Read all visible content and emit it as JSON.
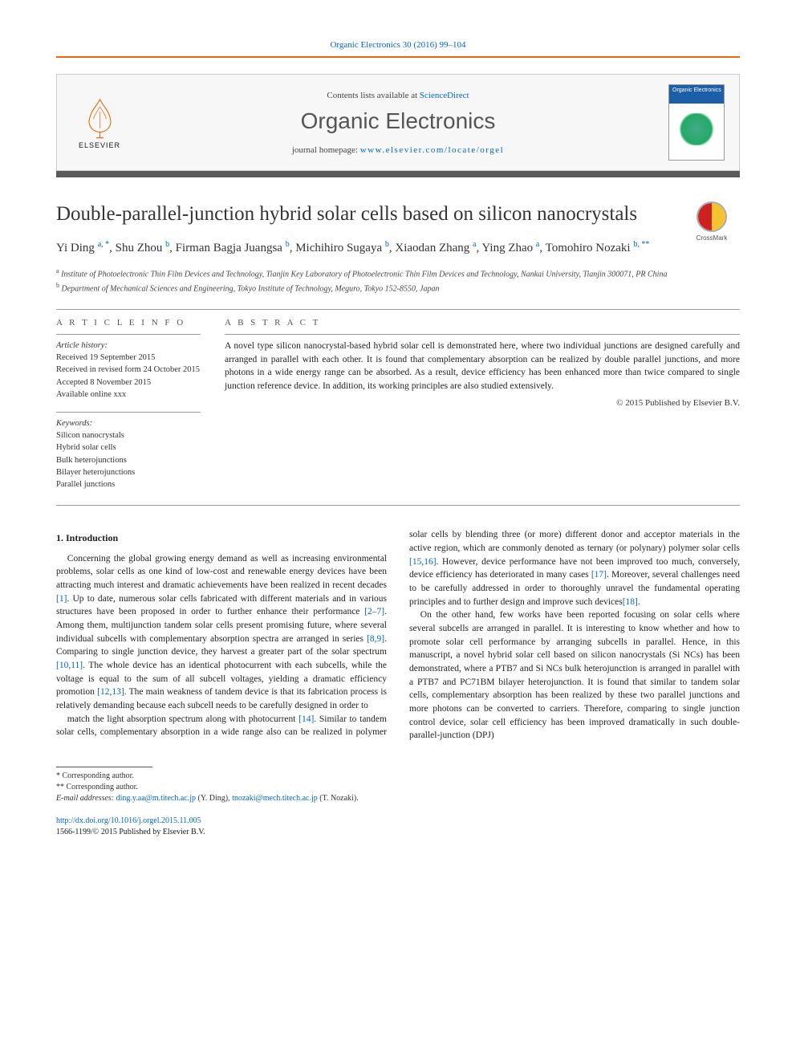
{
  "citation": "Organic Electronics 30 (2016) 99–104",
  "header": {
    "contents_prefix": "Contents lists available at ",
    "contents_link": "ScienceDirect",
    "journal": "Organic Electronics",
    "homepage_prefix": "journal homepage: ",
    "homepage_url": "www.elsevier.com/locate/orgel",
    "publisher_logo_text": "ELSEVIER",
    "cover_label": "Organic Electronics"
  },
  "crossmark_label": "CrossMark",
  "title": "Double-parallel-junction hybrid solar cells based on silicon nanocrystals",
  "authors_html": "Yi Ding <sup>a, *</sup>, Shu Zhou <sup>b</sup>, Firman Bagja Juangsa <sup>b</sup>, Michihiro Sugaya <sup>b</sup>, Xiaodan Zhang <sup>a</sup>, Ying Zhao <sup>a</sup>, Tomohiro Nozaki <sup>b, **</sup>",
  "affiliations": {
    "a": "Institute of Photoelectronic Thin Film Devices and Technology, Tianjin Key Laboratory of Photoelectronic Thin Film Devices and Technology, Nankai University, Tianjin 300071, PR China",
    "b": "Department of Mechanical Sciences and Engineering, Tokyo Institute of Technology, Meguro, Tokyo 152-8550, Japan"
  },
  "article_info": {
    "label": "A R T I C L E   I N F O",
    "history_label": "Article history:",
    "received": "Received 19 September 2015",
    "revised": "Received in revised form 24 October 2015",
    "accepted": "Accepted 8 November 2015",
    "online": "Available online xxx",
    "keywords_label": "Keywords:",
    "keywords": [
      "Silicon nanocrystals",
      "Hybrid solar cells",
      "Bulk heterojunctions",
      "Bilayer heterojunctions",
      "Parallel junctions"
    ]
  },
  "abstract": {
    "label": "A B S T R A C T",
    "text": "A novel type silicon nanocrystal-based hybrid solar cell is demonstrated here, where two individual junctions are designed carefully and arranged in parallel with each other. It is found that complementary absorption can be realized by double parallel junctions, and more photons in a wide energy range can be absorbed. As a result, device efficiency has been enhanced more than twice compared to single junction reference device. In addition, its working principles are also studied extensively.",
    "copyright": "© 2015 Published by Elsevier B.V."
  },
  "intro": {
    "heading": "1. Introduction",
    "p1": "Concerning the global growing energy demand as well as increasing environmental problems, solar cells as one kind of low-cost and renewable energy devices have been attracting much interest and dramatic achievements have been realized in recent decades [1]. Up to date, numerous solar cells fabricated with different materials and in various structures have been proposed in order to further enhance their performance [2–7]. Among them, multijunction tandem solar cells present promising future, where several individual subcells with complementary absorption spectra are arranged in series [8,9]. Comparing to single junction device, they harvest a greater part of the solar spectrum [10,11]. The whole device has an identical photocurrent with each subcells, while the voltage is equal to the sum of all subcell voltages, yielding a dramatic efficiency promotion [12,13]. The main weakness of tandem device is that its fabrication process is relatively demanding because each subcell needs to be carefully designed in order to",
    "p2": "match the light absorption spectrum along with photocurrent [14]. Similar to tandem solar cells, complementary absorption in a wide range also can be realized in polymer solar cells by blending three (or more) different donor and acceptor materials in the active region, which are commonly denoted as ternary (or polynary) polymer solar cells [15,16]. However, device performance have not been improved too much, conversely, device efficiency has deteriorated in many cases [17]. Moreover, several challenges need to be carefully addressed in order to thoroughly unravel the fundamental operating principles and to further design and improve such devices[18].",
    "p3": "On the other hand, few works have been reported focusing on solar cells where several subcells are arranged in parallel. It is interesting to know whether and how to promote solar cell performance by arranging subcells in parallel. Hence, in this manuscript, a novel hybrid solar cell based on silicon nanocrystals (Si NCs) has been demonstrated, where a PTB7 and Si NCs bulk heterojunction is arranged in parallel with a PTB7 and PC71BM bilayer heterojunction. It is found that similar to tandem solar cells, complementary absorption has been realized by these two parallel junctions and more photons can be converted to carriers. Therefore, comparing to single junction control device, solar cell efficiency has been improved dramatically in such double-parallel-junction (DPJ)"
  },
  "footnotes": {
    "corr1": "* Corresponding author.",
    "corr2": "** Corresponding author.",
    "email_label": "E-mail addresses:",
    "email1": "ding.y.aa@m.titech.ac.jp",
    "email1_name": "(Y. Ding),",
    "email2": "tnozaki@mech.titech.ac.jp",
    "email2_name": "(T. Nozaki)."
  },
  "bottom": {
    "doi": "http://dx.doi.org/10.1016/j.orgel.2015.11.005",
    "issn_line": "1566-1199/© 2015 Published by Elsevier B.V."
  },
  "colors": {
    "link": "#0066cc",
    "orange": "#e8670c",
    "darkbar": "#5a5a5a"
  }
}
